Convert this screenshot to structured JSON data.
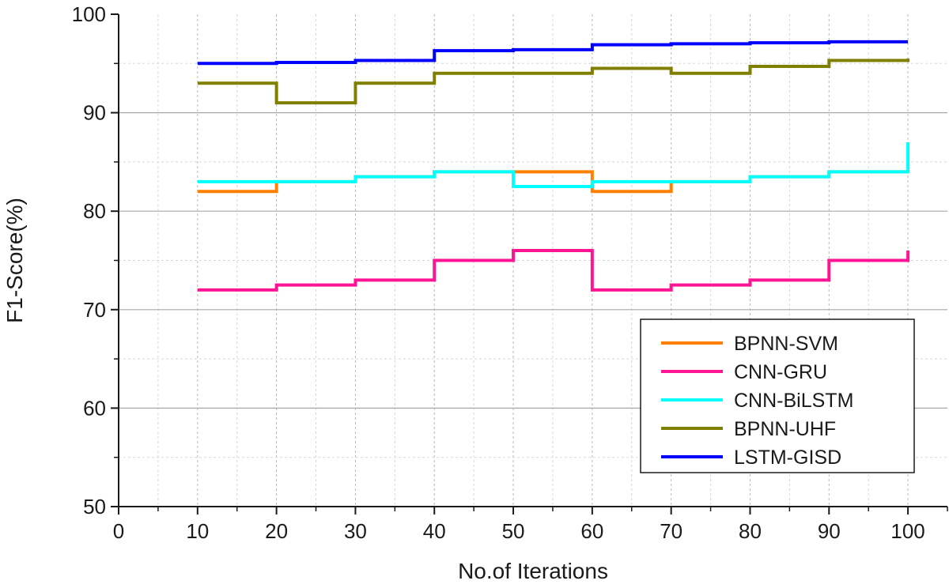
{
  "chart_data": {
    "type": "line",
    "style": "step",
    "title": "",
    "xlabel": "No.of Iterations",
    "ylabel": "F1-Score(%)",
    "xlim": [
      0,
      105
    ],
    "ylim": [
      50,
      100
    ],
    "xticks": [
      0,
      10,
      20,
      30,
      40,
      50,
      60,
      70,
      80,
      90,
      100
    ],
    "yticks": [
      50,
      60,
      70,
      80,
      90,
      100
    ],
    "grid": true,
    "legend_position": "bottom-right",
    "x": [
      10,
      20,
      30,
      40,
      50,
      60,
      70,
      80,
      90,
      100
    ],
    "series": [
      {
        "name": "BPNN-SVM",
        "color": "#ff8000",
        "values": [
          82,
          83,
          83.5,
          84,
          84,
          82,
          83,
          83.5,
          84,
          84
        ]
      },
      {
        "name": "CNN-GRU",
        "color": "#ff1493",
        "values": [
          72,
          72.5,
          73,
          75,
          76,
          72,
          72.5,
          73,
          75,
          76
        ]
      },
      {
        "name": "CNN-BiLSTM",
        "color": "#00ffff",
        "values": [
          83,
          83,
          83.5,
          84,
          82.5,
          83,
          83,
          83.5,
          84,
          87
        ]
      },
      {
        "name": "BPNN-UHF",
        "color": "#808000",
        "values": [
          93,
          91,
          93,
          94,
          94,
          94.5,
          94,
          94.7,
          95.3,
          95.5
        ]
      },
      {
        "name": "LSTM-GISD",
        "color": "#0000ff",
        "values": [
          95,
          95.1,
          95.3,
          96.3,
          96.4,
          96.9,
          97,
          97.1,
          97.2,
          97.2
        ]
      }
    ]
  }
}
